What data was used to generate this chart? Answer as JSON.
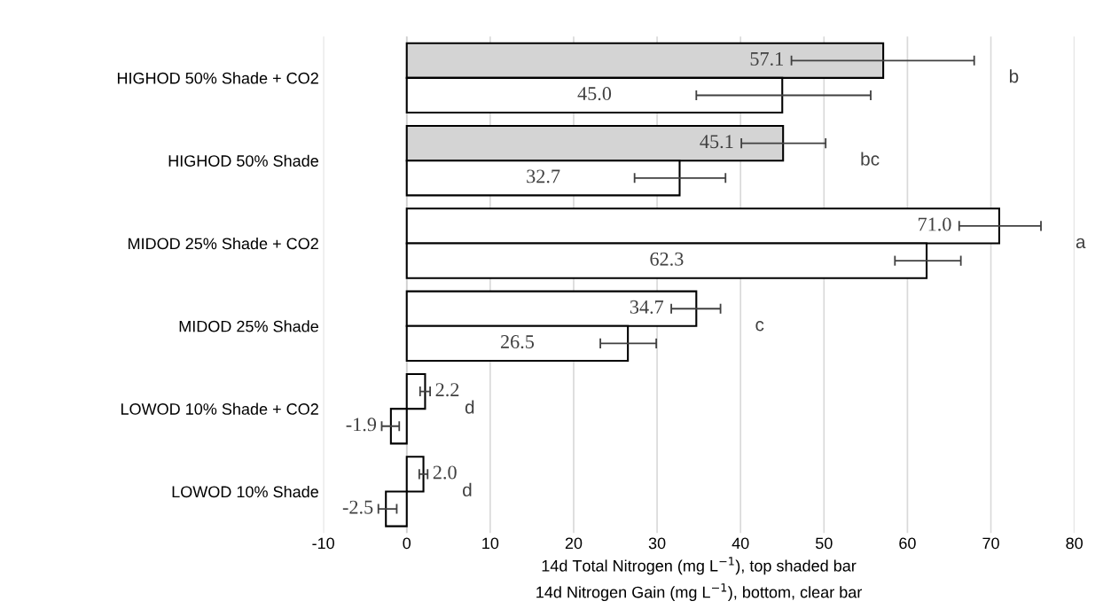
{
  "chart_data": {
    "type": "bar",
    "orientation": "horizontal",
    "xlabel": "14d Total Nitrogen (mg L$^{−1}$), top shaded bar\n14d Nitrogen Gain (mg L$^{−1}$), bottom, clear bar",
    "categories": [
      "HIGHOD 50% Shade + CO2",
      "HIGHOD 50% Shade",
      "MIDOD 25% Shade + CO2",
      "MIDOD 25% Shade",
      "LOWOD 10% Shade + CO2",
      "LOWOD 10% Shade"
    ],
    "series": [
      {
        "colors": [
          "#d4d4d4",
          "#d4d4d4",
          "#ffffff",
          "#ffffff",
          "#ffffff",
          "#ffffff"
        ],
        "values": [
          57.1,
          45.1,
          71.0,
          34.7,
          2.2,
          2.0
        ],
        "value_labels": [
          "57.1",
          "45.1",
          "71.0",
          "34.7",
          "2.2",
          "2.0"
        ],
        "errors": [
          [
            46.1,
            68.0
          ],
          [
            40.1,
            50.2
          ],
          [
            66.2,
            76.0
          ],
          [
            31.7,
            37.6
          ],
          [
            1.6,
            2.8
          ],
          [
            1.5,
            2.5
          ]
        ]
      },
      {
        "colors": [
          "#ffffff",
          "#ffffff",
          "#ffffff",
          "#ffffff",
          "#ffffff",
          "#ffffff"
        ],
        "values": [
          45.0,
          32.7,
          62.3,
          26.5,
          -1.9,
          -2.5
        ],
        "value_labels": [
          "45.0",
          "32.7",
          "62.3",
          "26.5",
          "-1.9",
          "-2.5"
        ],
        "errors": [
          [
            34.7,
            55.6
          ],
          [
            27.3,
            38.2
          ],
          [
            58.5,
            66.4
          ],
          [
            23.2,
            29.9
          ],
          [
            -3.0,
            -0.9
          ],
          [
            -3.4,
            -1.2
          ]
        ]
      }
    ],
    "xlim": [
      -10,
      80
    ],
    "xticks": [
      -10,
      0,
      10,
      20,
      30,
      40,
      50,
      60,
      70,
      80
    ],
    "grid": "x",
    "annotations": [
      "b",
      "bc",
      "a",
      "c",
      "d",
      "d"
    ]
  }
}
